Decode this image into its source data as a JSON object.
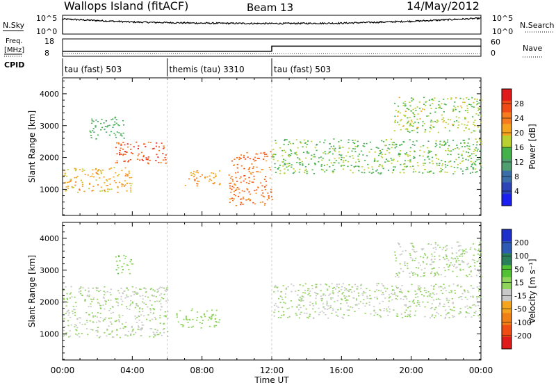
{
  "header": {
    "station": "Wallops Island (fitACF)",
    "beam": "Beam 13",
    "date": "14/May/2012"
  },
  "panel_labels": {
    "nsky": "N.Sky",
    "nsearch": "N.Search",
    "freq_line1": "Freq.",
    "freq_line2": "[MHz]",
    "cpid": "CPID",
    "nave": "Nave"
  },
  "top_axis": {
    "nsky_ticks": [
      "10^5",
      "10^0"
    ],
    "nsearch_ticks": [
      "10^5",
      "10^0"
    ],
    "freq_ticks": [
      "18",
      "8"
    ],
    "nave_ticks": [
      "60",
      "0"
    ]
  },
  "cpid_segments": [
    {
      "label": "tau (fast) 503",
      "start_h": 0
    },
    {
      "label": "themis (tau) 3310",
      "start_h": 6
    },
    {
      "label": "tau (fast) 503",
      "start_h": 12
    }
  ],
  "colorbars": {
    "power": {
      "label": "Power [dB]",
      "ticks": [
        "28",
        "24",
        "20",
        "16",
        "12",
        "8",
        "4"
      ],
      "colors": [
        "#e0191b",
        "#f04a16",
        "#f57b1e",
        "#f5a41e",
        "#b9d030",
        "#43b24a",
        "#4f9f70",
        "#3a6ea8",
        "#2d44b8",
        "#1a1ff0"
      ]
    },
    "velocity": {
      "label": "Velocity [m s⁻¹]",
      "ticks": [
        "200",
        "100",
        "50",
        "15",
        "-15",
        "-50",
        "-100",
        "-200"
      ],
      "colors": [
        "#1f2fc9",
        "#2c5ab4",
        "#2a7f5a",
        "#52c234",
        "#8ed35a",
        "#c8c8c8",
        "#f5a41e",
        "#f07f16",
        "#ef4d14",
        "#e01b1b"
      ]
    }
  },
  "chart_data": [
    {
      "type": "line",
      "title": "N.Sky / N.Search",
      "x": [
        "00:00",
        "04:00",
        "08:00",
        "12:00",
        "16:00",
        "20:00",
        "00:00"
      ],
      "series": [
        {
          "name": "N.Sky",
          "values": [
            4.0,
            3.2,
            2.9,
            2.8,
            2.9,
            3.4,
            4.2
          ]
        },
        {
          "name": "N.Search",
          "values": [
            0,
            0,
            0,
            0,
            0,
            0,
            0
          ]
        }
      ]
    },
    {
      "type": "line",
      "title": "Freq. [MHz] / Nave",
      "x_hours": [
        0,
        12,
        12,
        24
      ],
      "series": [
        {
          "name": "Freq. [MHz]",
          "values": [
            10.5,
            10.5,
            14.0,
            14.0
          ]
        },
        {
          "name": "Nave",
          "values": [
            0,
            0,
            0,
            0
          ]
        }
      ]
    },
    {
      "type": "heatmap",
      "title": "Power [dB]",
      "xlabel": "Time UT",
      "ylabel": "Slant Range [km]",
      "xlim_hours": [
        0,
        24
      ],
      "ylim": [
        180,
        4500
      ],
      "x_ticks": [
        "00:00",
        "04:00",
        "08:00",
        "12:00",
        "16:00",
        "20:00",
        "00:00"
      ],
      "y_ticks": [
        1000,
        2000,
        3000,
        4000
      ],
      "features": [
        {
          "t_start": 0.0,
          "t_end": 4.0,
          "r_start": 900,
          "r_end": 1700,
          "power_db": 20
        },
        {
          "t_start": 3.0,
          "t_end": 6.0,
          "r_start": 1800,
          "r_end": 2500,
          "power_db": 26
        },
        {
          "t_start": 1.5,
          "t_end": 3.5,
          "r_start": 2600,
          "r_end": 3300,
          "power_db": 12
        },
        {
          "t_start": 7.0,
          "t_end": 9.0,
          "r_start": 1100,
          "r_end": 1600,
          "power_db": 22
        },
        {
          "t_start": 9.5,
          "t_end": 12.0,
          "r_start": 500,
          "r_end": 2200,
          "power_db": 24
        },
        {
          "t_start": 12.0,
          "t_end": 24.0,
          "r_start": 1500,
          "r_end": 2600,
          "power_db": 14
        },
        {
          "t_start": 19.0,
          "t_end": 24.0,
          "r_start": 2800,
          "r_end": 3900,
          "power_db": 16
        }
      ]
    },
    {
      "type": "heatmap",
      "title": "Velocity [m s⁻¹]",
      "xlabel": "Time UT",
      "ylabel": "Slant Range [km]",
      "xlim_hours": [
        0,
        24
      ],
      "ylim": [
        180,
        4500
      ],
      "x_ticks": [
        "00:00",
        "04:00",
        "08:00",
        "12:00",
        "16:00",
        "20:00",
        "00:00"
      ],
      "y_ticks": [
        1000,
        2000,
        3000,
        4000
      ],
      "features": [
        {
          "t_start": 0.0,
          "t_end": 6.0,
          "r_start": 900,
          "r_end": 2500,
          "velocity": 0
        },
        {
          "t_start": 3.0,
          "t_end": 4.0,
          "r_start": 2900,
          "r_end": 3500,
          "velocity": 40
        },
        {
          "t_start": 6.5,
          "t_end": 9.0,
          "r_start": 1200,
          "r_end": 1800,
          "velocity": 30
        },
        {
          "t_start": 12.0,
          "t_end": 24.0,
          "r_start": 1500,
          "r_end": 2600,
          "velocity": 0
        },
        {
          "t_start": 19.0,
          "t_end": 24.0,
          "r_start": 2800,
          "r_end": 3900,
          "velocity": 0
        }
      ]
    }
  ]
}
